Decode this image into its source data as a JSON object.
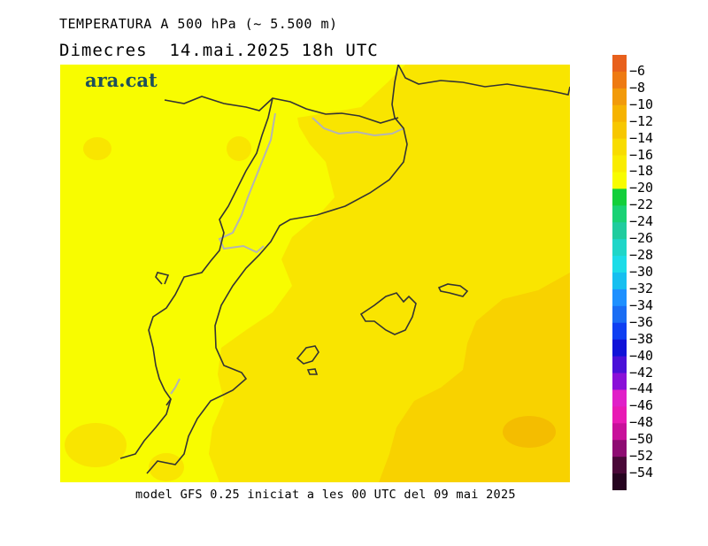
{
  "title_line1": "TEMPERATURA A 500 hPa (~ 5.500 m)",
  "title_line2": "Dimecres  14.mai.2025 18h UTC",
  "logo_text": "ara.cat",
  "footer": "model GFS 0.25 iniciat a les 00 UTC del 09 mai 2025",
  "colorbar": {
    "levels": [
      "-6",
      "-8",
      "-10",
      "-12",
      "-14",
      "-16",
      "-18",
      "-20",
      "-22",
      "-24",
      "-26",
      "-28",
      "-30",
      "-32",
      "-34",
      "-36",
      "-38",
      "-40",
      "-42",
      "-44",
      "-46",
      "-48",
      "-50",
      "-52",
      "-54"
    ],
    "colors": [
      "#e8601c",
      "#ee7a12",
      "#f29a0a",
      "#f6b300",
      "#f7c700",
      "#f8dc00",
      "#f9ec00",
      "#f8fc00",
      "#12cf3a",
      "#19d274",
      "#20cc9e",
      "#1fd6c8",
      "#1cdce8",
      "#16bff0",
      "#1e90ff",
      "#1a6df4",
      "#0f3ff2",
      "#1012d8",
      "#4a10d8",
      "#8a10d8",
      "#e020c8",
      "#e81ab4",
      "#c8109a",
      "#8e0c72",
      "#4a0838",
      "#260420"
    ]
  },
  "map_colors": {
    "land_yellow": "#f8fc00",
    "level_minus18": "#f9e500",
    "level_minus16": "#f8d200",
    "level_minus14": "#f4bd00",
    "coast": "#333333",
    "border": "#b4b4b4"
  }
}
